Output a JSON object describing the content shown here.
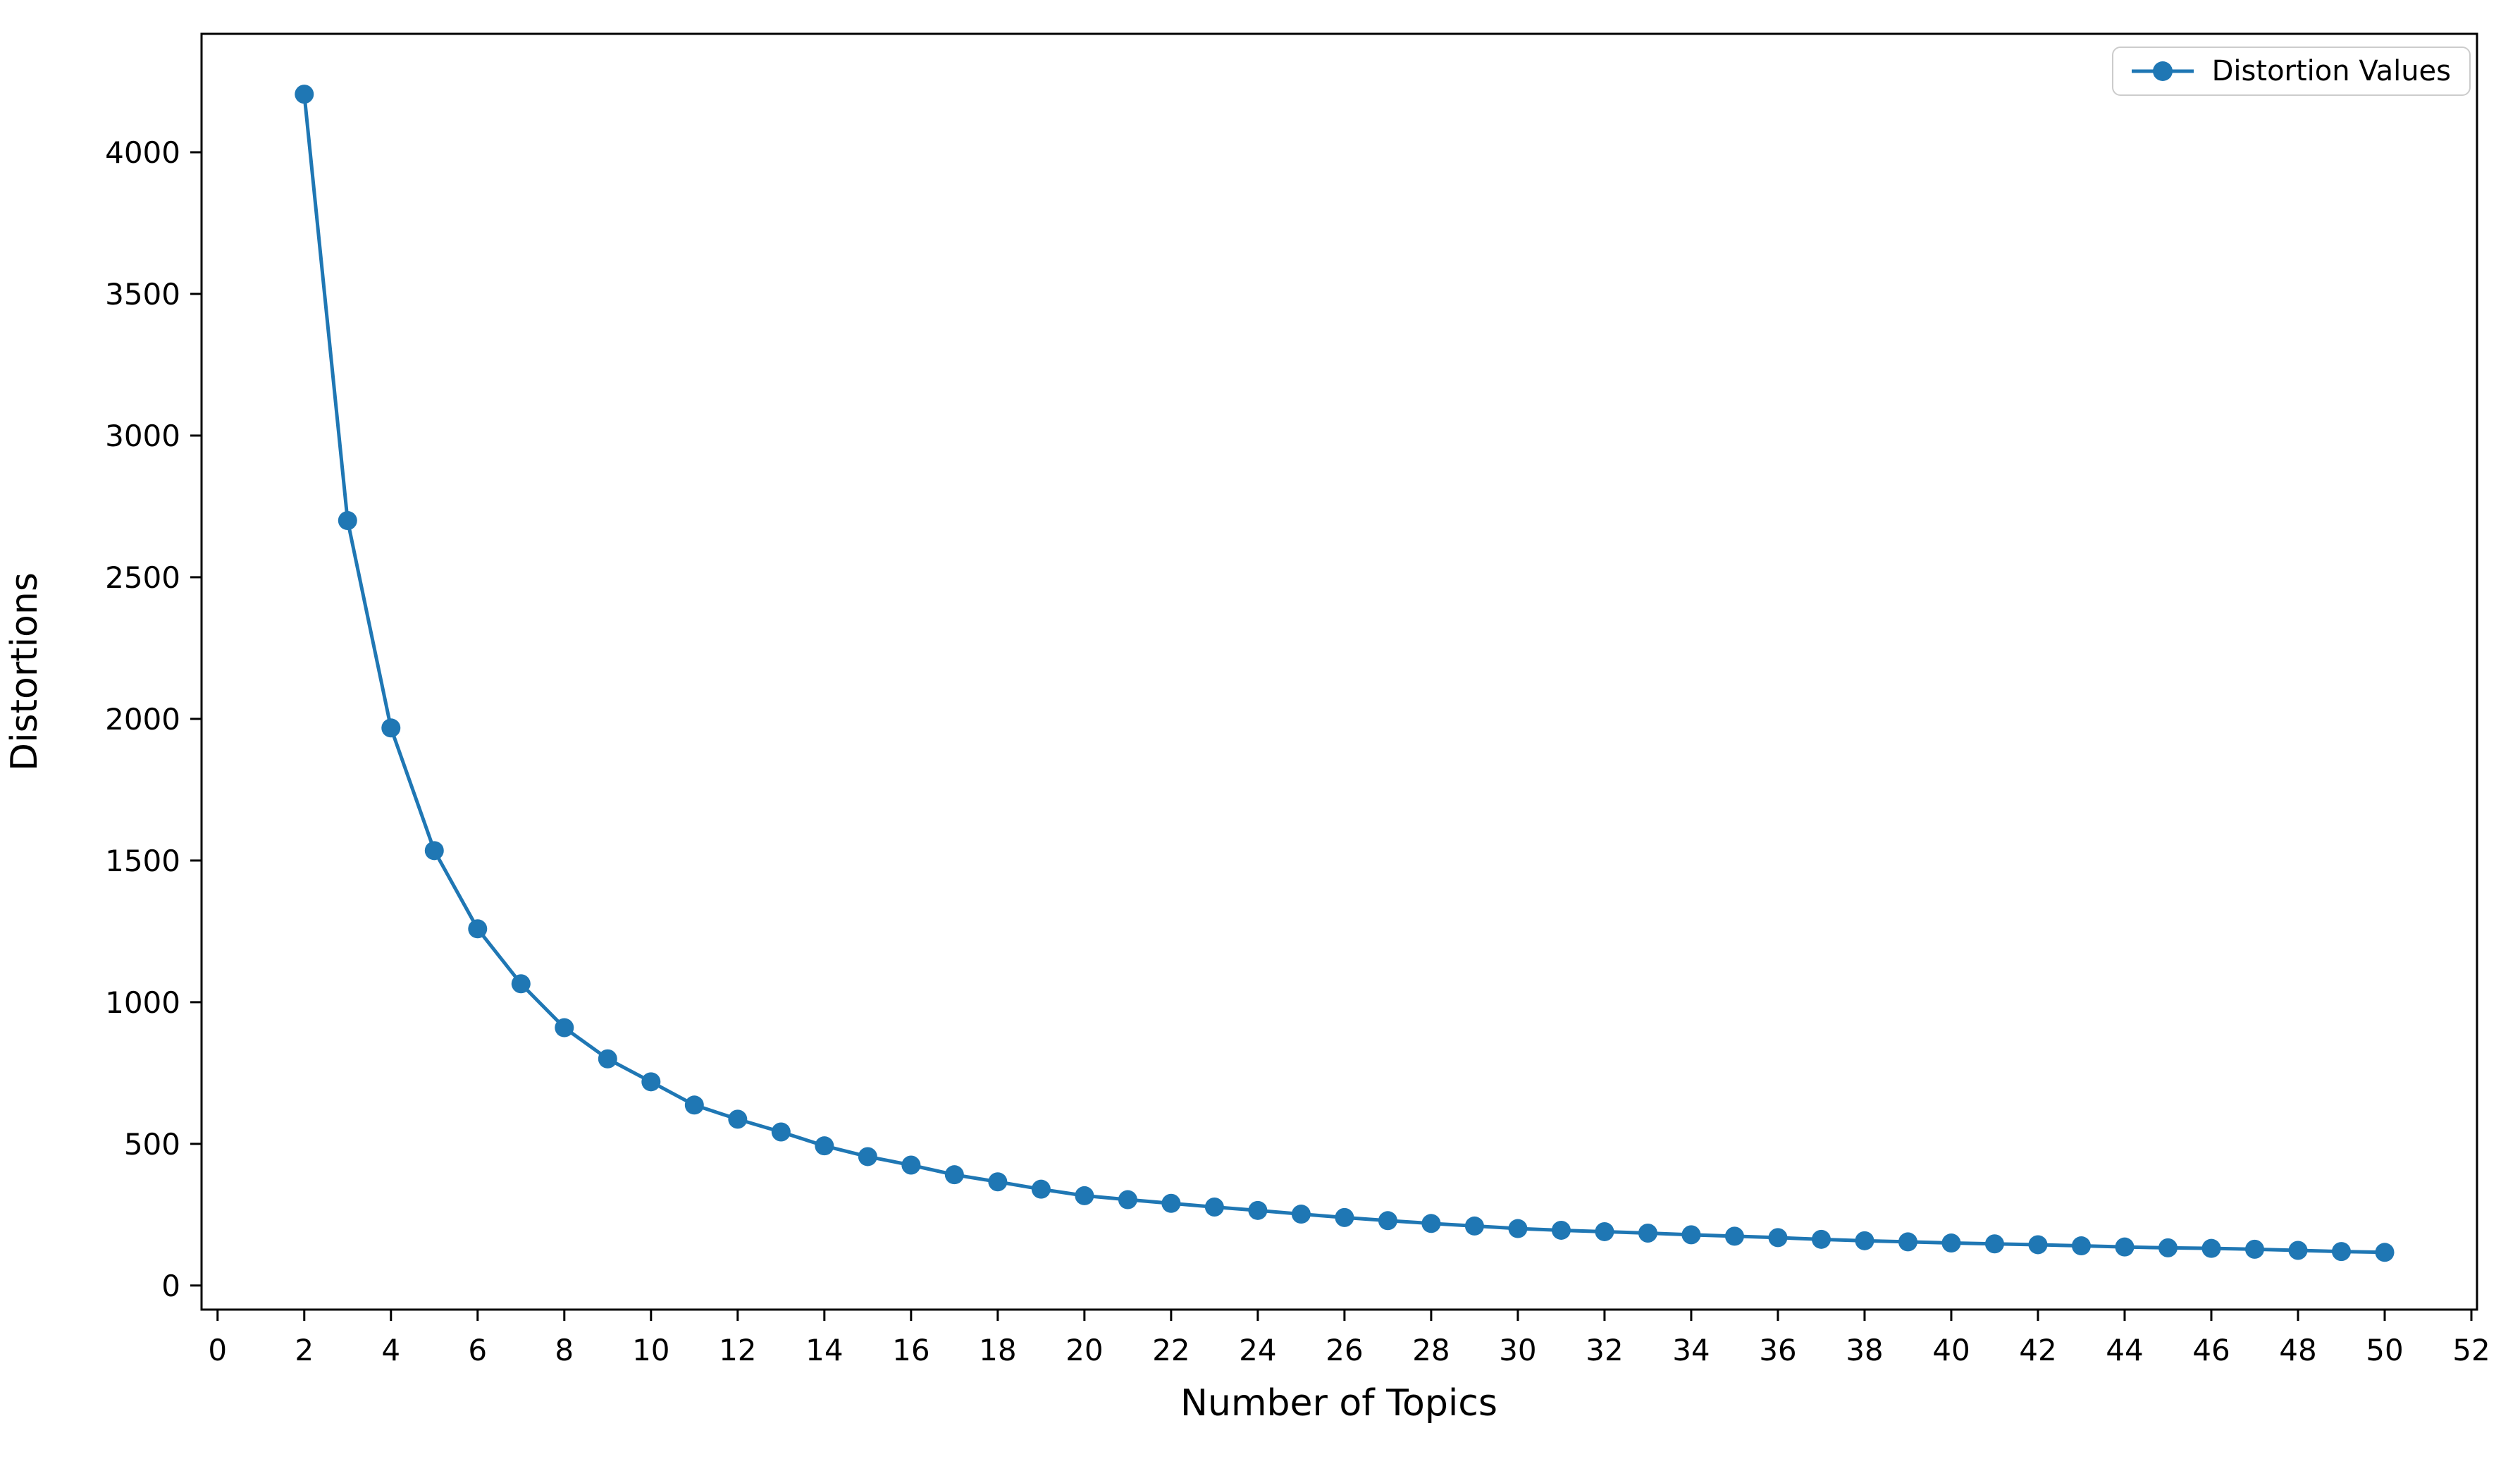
{
  "chart_data": {
    "type": "line",
    "title": "",
    "xlabel": "Number of Topics",
    "ylabel": "Distortions",
    "grid": false,
    "background_color": "#ffffff",
    "axis_color": "#000000",
    "legend": {
      "position": "upper right",
      "entries": [
        "Distortion Values"
      ]
    },
    "xticks": [
      0,
      2,
      4,
      6,
      8,
      10,
      12,
      14,
      16,
      18,
      20,
      22,
      24,
      26,
      28,
      30,
      32,
      34,
      36,
      38,
      40,
      42,
      44,
      46,
      48,
      50,
      52
    ],
    "yticks": [
      0,
      500,
      1000,
      1500,
      2000,
      2500,
      3000,
      3500,
      4000
    ],
    "xlim": [
      -0.37,
      52.13
    ],
    "ylim": [
      -85,
      4418
    ],
    "series": [
      {
        "name": "Distortion Values",
        "color": "#1f77b4",
        "marker": "circle",
        "x": [
          2,
          3,
          4,
          5,
          6,
          7,
          8,
          9,
          10,
          11,
          12,
          13,
          14,
          15,
          16,
          17,
          18,
          19,
          20,
          21,
          22,
          23,
          24,
          25,
          26,
          27,
          28,
          29,
          30,
          31,
          32,
          33,
          34,
          35,
          36,
          37,
          38,
          39,
          40,
          41,
          42,
          43,
          44,
          45,
          46,
          47,
          48,
          49,
          50
        ],
        "values": [
          4205,
          2700,
          1968,
          1535,
          1259,
          1065,
          910,
          800,
          719,
          637,
          587,
          542,
          493,
          455,
          425,
          391,
          366,
          340,
          317,
          303,
          290,
          277,
          265,
          252,
          240,
          229,
          219,
          210,
          201,
          195,
          190,
          185,
          179,
          174,
          169,
          163,
          158,
          154,
          150,
          147,
          144,
          140,
          136,
          133,
          131,
          128,
          124,
          120,
          117
        ]
      }
    ]
  }
}
